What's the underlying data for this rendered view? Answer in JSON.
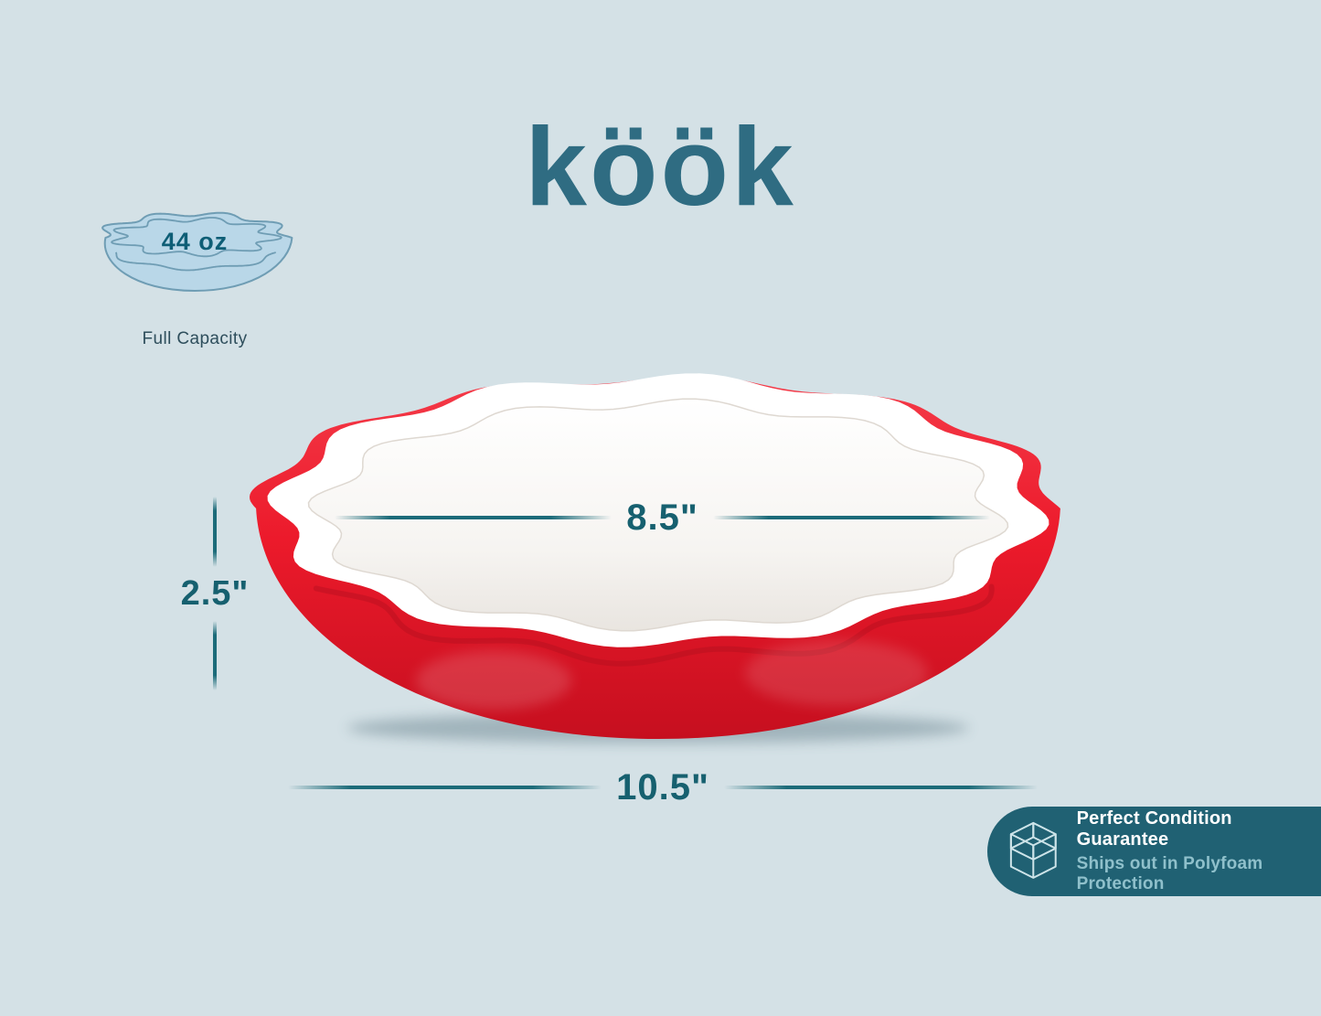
{
  "brand": {
    "logo_text": "köök"
  },
  "capacity": {
    "value": "44 oz",
    "label": "Full Capacity"
  },
  "measurements": {
    "inner_diameter": "8.5\"",
    "height": "2.5\"",
    "outer_diameter": "10.5\""
  },
  "guarantee": {
    "title": "Perfect Condition Guarantee",
    "subtitle": "Ships out in Polyfoam Protection"
  },
  "colors": {
    "background": "#d4e1e6",
    "brand_teal": "#2f6c82",
    "dimension_teal": "#16606f",
    "dish_red": "#ec1a2b",
    "dish_interior_white": "#ffffff",
    "badge_teal": "#206173",
    "capacity_icon_blue": "#b9d7e8"
  }
}
